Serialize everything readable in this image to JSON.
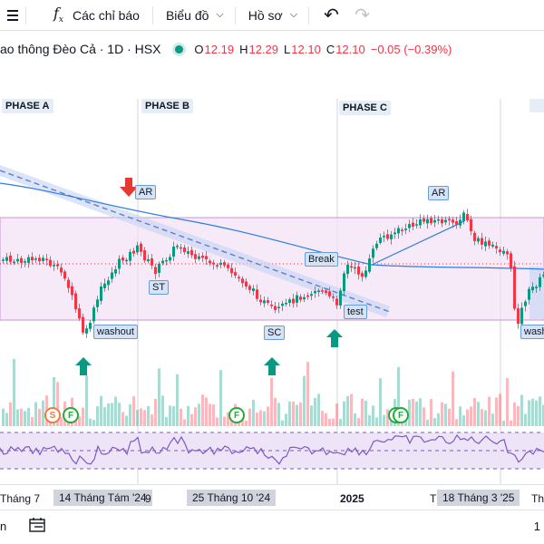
{
  "toolbar": {
    "indicators_label": "Các chỉ báo",
    "chart_type_label": "Biểu đồ",
    "profile_label": "Hồ sơ"
  },
  "legend": {
    "title": "ao thông Đèo Cả · 1D · HSX",
    "open_key": "O",
    "open": "12.19",
    "high_key": "H",
    "high": "12.29",
    "low_key": "L",
    "low": "12.10",
    "close_key": "C",
    "close": "12.10",
    "change": "−0.05 (−0.39%)",
    "down_color": "#f23645",
    "up_color": "#089981"
  },
  "annotations": {
    "phase_a": "PHASE A",
    "phase_b": "PHASE B",
    "phase_c": "PHASE C",
    "ar1": "AR",
    "ar2": "AR",
    "st": "ST",
    "break": "Break",
    "test": "test",
    "washout1": "washout",
    "washout2": "wash",
    "sc": "SC"
  },
  "badges": [
    "S",
    "F",
    "F",
    "F",
    "F",
    "F"
  ],
  "time_axis": {
    "t1": "Tháng 7",
    "t2": "14 Tháng Tám '24",
    "t3": "9",
    "t4": "25 Tháng 10 '24",
    "t5": "2025",
    "t6": "T",
    "t7": "18 Tháng 3 '25",
    "t8": "Th"
  },
  "bottom": {
    "left_text": "n",
    "right_text": "1"
  },
  "icons": {
    "indicators": "fx-icon",
    "calendar": "calendar-range-icon",
    "undo": "undo-icon",
    "redo": "redo-icon"
  }
}
